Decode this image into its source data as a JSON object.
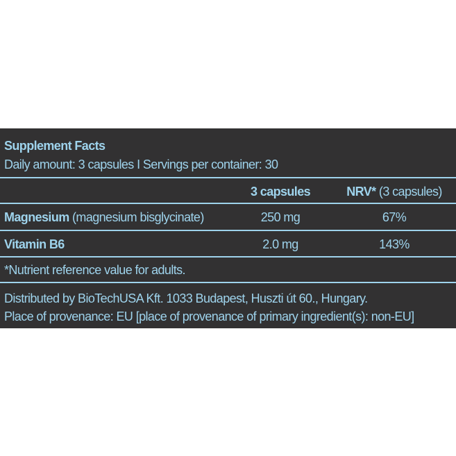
{
  "panel": {
    "title": "Supplement Facts",
    "subtitle": "Daily amount: 3 capsules I Servings per container: 30"
  },
  "table": {
    "columns": [
      {
        "main": "3 capsules"
      },
      {
        "main": "NRV*",
        "note": "(3 capsules)"
      }
    ],
    "rows": [
      {
        "name": "Magnesium",
        "note": "(magnesium bisglycinate)",
        "amount": "250 mg",
        "nrv": "67%"
      },
      {
        "name": "Vitamin B6",
        "amount": "2.0 mg",
        "nrv": "143%"
      }
    ],
    "footnote": "*Nutrient reference value for adults."
  },
  "footer": [
    "Distributed by BioTechUSA Kft. 1033 Budapest, Huszti út 60., Hungary.",
    "Place of provenance: EU [place of provenance of primary ingredient(s): non-EU]"
  ]
}
